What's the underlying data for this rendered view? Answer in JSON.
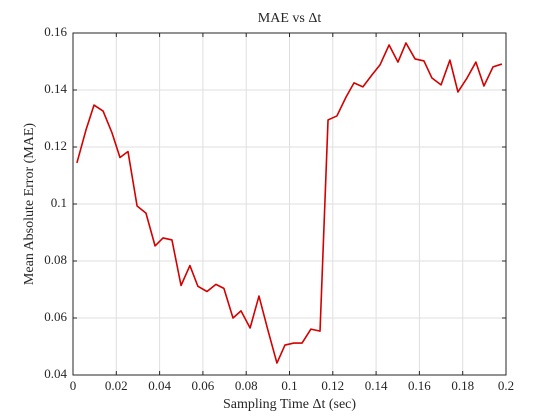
{
  "chart_data": {
    "type": "line",
    "title": "MAE vs Δt",
    "xlabel": "Sampling Time Δt (sec)",
    "ylabel": "Mean Absolute Error (MAE)",
    "x": [
      0.0018,
      0.006,
      0.0097,
      0.0139,
      0.018,
      0.0217,
      0.0254,
      0.0296,
      0.0337,
      0.0379,
      0.0416,
      0.0457,
      0.0499,
      0.054,
      0.0577,
      0.0619,
      0.066,
      0.0697,
      0.0739,
      0.0776,
      0.0818,
      0.0859,
      0.09,
      0.0942,
      0.0979,
      0.102,
      0.1058,
      0.1099,
      0.1141,
      0.1178,
      0.1219,
      0.1261,
      0.1298,
      0.1339,
      0.1381,
      0.1418,
      0.146,
      0.1501,
      0.1538,
      0.158,
      0.1621,
      0.1658,
      0.17,
      0.1741,
      0.1778,
      0.182,
      0.1861,
      0.1898,
      0.194,
      0.1981
    ],
    "series": [
      {
        "name": "MAE",
        "color": "#d40000",
        "values": [
          0.1144,
          0.126,
          0.1347,
          0.1326,
          0.125,
          0.1163,
          0.1184,
          0.0993,
          0.0968,
          0.0853,
          0.0881,
          0.0874,
          0.0714,
          0.0784,
          0.0711,
          0.0693,
          0.0718,
          0.0704,
          0.06,
          0.0625,
          0.0565,
          0.0677,
          0.0558,
          0.0442,
          0.0505,
          0.0512,
          0.0512,
          0.0561,
          0.0554,
          0.1295,
          0.1309,
          0.1375,
          0.1425,
          0.1411,
          0.1453,
          0.1488,
          0.1558,
          0.1498,
          0.1565,
          0.1509,
          0.1502,
          0.1442,
          0.1418,
          0.1505,
          0.1393,
          0.1442,
          0.1498,
          0.1414,
          0.1481,
          0.1491
        ]
      }
    ],
    "xlim": [
      0,
      0.2
    ],
    "xticks": [
      0,
      0.02,
      0.04,
      0.06,
      0.08,
      0.1,
      0.12,
      0.14,
      0.16,
      0.18,
      0.2
    ],
    "ylim": [
      0.04,
      0.16
    ],
    "yticks": [
      0.04,
      0.06,
      0.08,
      0.1,
      0.12,
      0.14,
      0.16
    ],
    "grid": true
  }
}
